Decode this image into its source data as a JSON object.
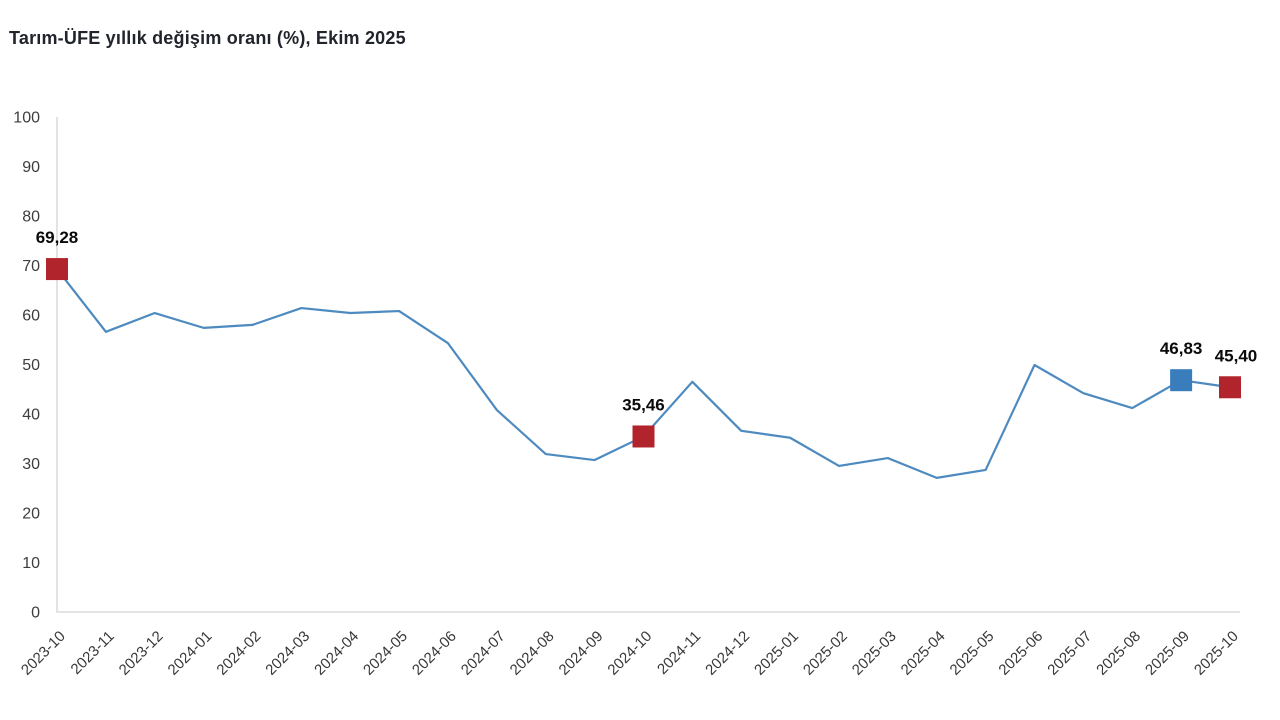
{
  "title": "Tarım-ÜFE yıllık değişim oranı (%), Ekim 2025",
  "colors": {
    "line": "#4d8ac0",
    "marker_red": "#b2242b",
    "marker_blue": "#3a7dbd",
    "axis": "#dcdcdc",
    "tick_text": "#3d3d3d",
    "label_text": "#0a0a0a"
  },
  "chart_data": {
    "type": "line",
    "title": "Tarım-ÜFE yıllık değişim oranı (%), Ekim 2025",
    "xlabel": "",
    "ylabel": "",
    "ylim": [
      0,
      100
    ],
    "yticks": [
      0,
      10,
      20,
      30,
      40,
      50,
      60,
      70,
      80,
      90,
      100
    ],
    "grid": false,
    "legend": "none",
    "x": [
      "2023-10",
      "2023-11",
      "2023-12",
      "2024-01",
      "2024-02",
      "2024-03",
      "2024-04",
      "2024-05",
      "2024-06",
      "2024-07",
      "2024-08",
      "2024-09",
      "2024-10",
      "2024-11",
      "2024-12",
      "2025-01",
      "2025-02",
      "2025-03",
      "2025-04",
      "2025-05",
      "2025-06",
      "2025-07",
      "2025-08",
      "2025-09",
      "2025-10"
    ],
    "values": [
      69.28,
      56.6,
      60.4,
      57.4,
      58.0,
      61.4,
      60.4,
      60.8,
      54.3,
      40.8,
      31.9,
      30.7,
      35.46,
      46.5,
      36.6,
      35.2,
      29.5,
      31.1,
      27.1,
      28.7,
      49.9,
      44.2,
      41.2,
      46.83,
      45.4
    ],
    "annotations": [
      {
        "x": "2023-10",
        "value": 69.28,
        "label": "69,28",
        "marker": "red"
      },
      {
        "x": "2024-10",
        "value": 35.46,
        "label": "35,46",
        "marker": "red"
      },
      {
        "x": "2025-09",
        "value": 46.83,
        "label": "46,83",
        "marker": "blue"
      },
      {
        "x": "2025-10",
        "value": 45.4,
        "label": "45,40",
        "marker": "red"
      }
    ]
  }
}
